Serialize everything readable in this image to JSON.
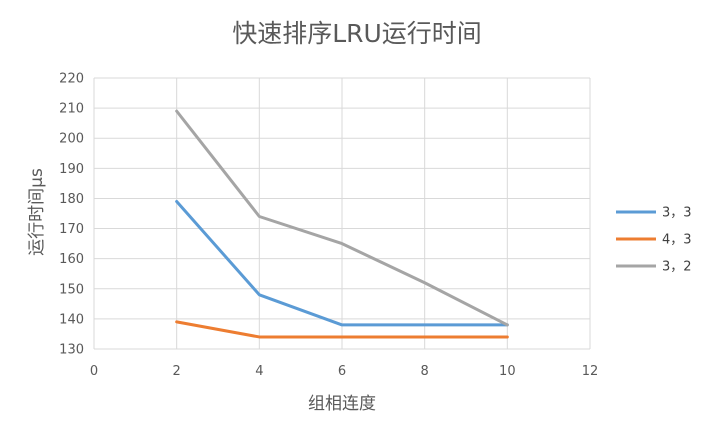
{
  "chart_data": {
    "type": "line",
    "title": "快速排序LRU运行时间",
    "xlabel": "组相连度",
    "ylabel": "运行时间μs",
    "xlim": [
      0,
      12
    ],
    "ylim": [
      130,
      220
    ],
    "x_ticks": [
      0,
      2,
      4,
      6,
      8,
      10,
      12
    ],
    "y_ticks": [
      130,
      140,
      150,
      160,
      170,
      180,
      190,
      200,
      210,
      220
    ],
    "grid": true,
    "legend_position": "right",
    "series": [
      {
        "name": "3，3",
        "color": "#5b9bd5",
        "x": [
          2,
          4,
          6,
          8,
          10
        ],
        "values": [
          179,
          148,
          138,
          138,
          138
        ]
      },
      {
        "name": "4，3",
        "color": "#ed7d31",
        "x": [
          2,
          4,
          6,
          8,
          10
        ],
        "values": [
          139,
          134,
          134,
          134,
          134
        ]
      },
      {
        "name": "3，2",
        "color": "#a5a5a5",
        "x": [
          2,
          4,
          6,
          8,
          10
        ],
        "values": [
          209,
          174,
          165,
          152,
          138
        ]
      }
    ]
  }
}
